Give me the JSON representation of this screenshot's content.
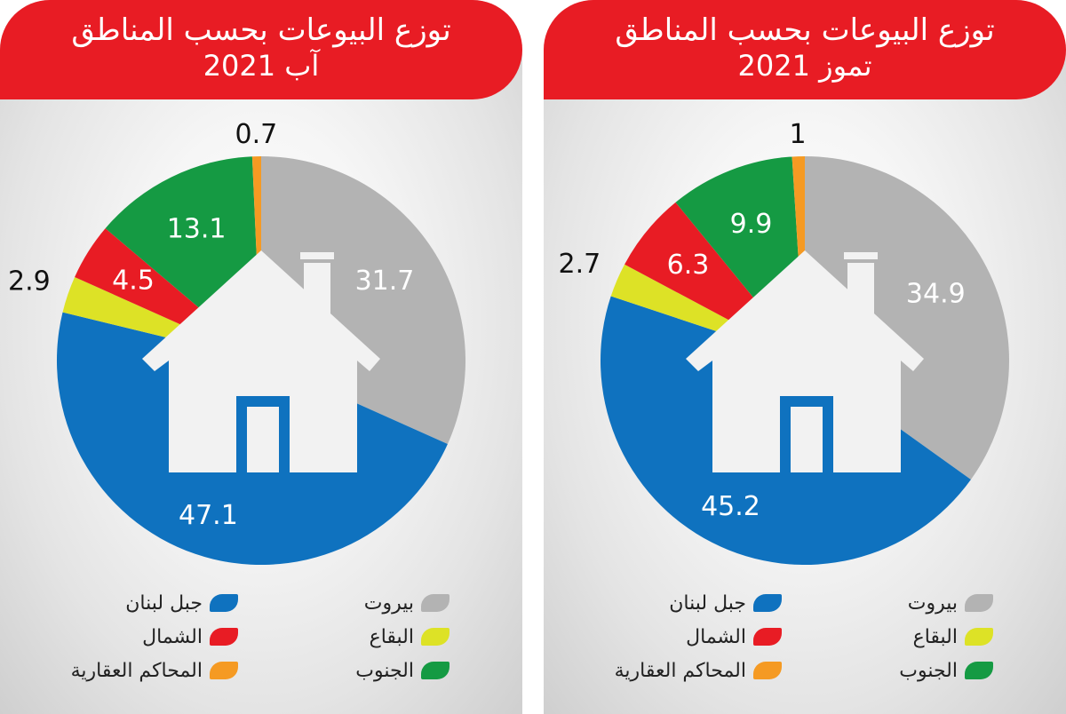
{
  "colors": {
    "beirut": "#b3b3b3",
    "mount_lebanon": "#0f72bf",
    "north": "#e81c24",
    "bekaa": "#dde226",
    "south": "#159a43",
    "real_estate_courts": "#f59a23",
    "header": "#e81c24"
  },
  "icon": "house-icon",
  "legend": {
    "beirut": "بيروت",
    "mount_lebanon": "جبل لبنان",
    "bekaa": "البقاع",
    "north": "الشمال",
    "south": "الجنوب",
    "real_estate_courts": "المحاكم العقارية"
  },
  "chart_data": [
    {
      "type": "pie",
      "title": "توزع البيوعات بحسب المناطق",
      "subtitle": "آب 2021",
      "slices": [
        {
          "key": "beirut",
          "value": 31.7,
          "label": "31.7"
        },
        {
          "key": "mount_lebanon",
          "value": 47.1,
          "label": "47.1"
        },
        {
          "key": "bekaa",
          "value": 2.9,
          "label": "2.9"
        },
        {
          "key": "north",
          "value": 4.5,
          "label": "4.5"
        },
        {
          "key": "south",
          "value": 13.1,
          "label": "13.1"
        },
        {
          "key": "real_estate_courts",
          "value": 0.7,
          "label": "0.7"
        }
      ]
    },
    {
      "type": "pie",
      "title": "توزع البيوعات بحسب المناطق",
      "subtitle": "تموز 2021",
      "slices": [
        {
          "key": "beirut",
          "value": 34.9,
          "label": "34.9"
        },
        {
          "key": "mount_lebanon",
          "value": 45.2,
          "label": "45.2"
        },
        {
          "key": "bekaa",
          "value": 2.7,
          "label": "2.7"
        },
        {
          "key": "north",
          "value": 6.3,
          "label": "6.3"
        },
        {
          "key": "south",
          "value": 9.9,
          "label": "9.9"
        },
        {
          "key": "real_estate_courts",
          "value": 1,
          "label": "1"
        }
      ]
    }
  ]
}
